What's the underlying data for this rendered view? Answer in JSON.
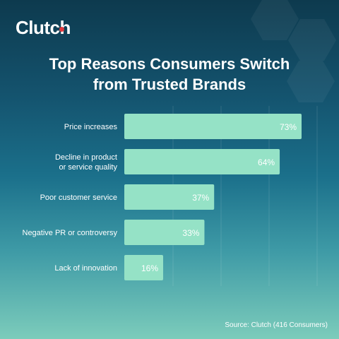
{
  "brand": {
    "logo_text": "Clutch"
  },
  "title_line1": "Top Reasons Consumers Switch",
  "title_line2": "from Trusted Brands",
  "source": "Source: Clutch (416 Consumers)",
  "colors": {
    "bar": "#95e2c6",
    "bar_label": "#ffffff",
    "category_label": "#ffffff",
    "accent_dot": "#e2393e"
  },
  "chart_data": {
    "type": "bar",
    "orientation": "horizontal",
    "categories": [
      [
        "Price increases"
      ],
      [
        "Decline in product",
        "or service quality"
      ],
      [
        "Poor customer service"
      ],
      [
        "Negative PR or controversy"
      ],
      [
        "Lack of innovation"
      ]
    ],
    "values": [
      73,
      64,
      37,
      33,
      16
    ],
    "value_labels": [
      "73%",
      "64%",
      "37%",
      "33%",
      "16%"
    ],
    "unit": "%",
    "xlim": [
      0,
      73
    ],
    "grid": true
  }
}
